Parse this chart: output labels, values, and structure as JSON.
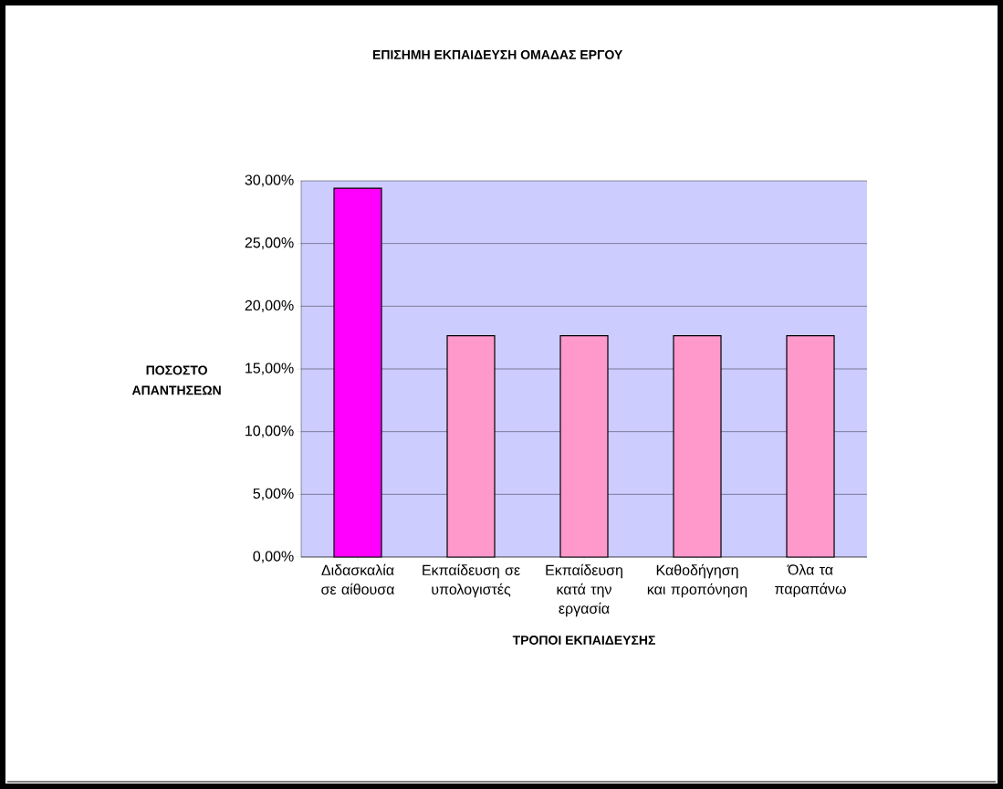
{
  "chart_data": {
    "type": "bar",
    "title": "ΕΠΙΣΗΜΗ ΕΚΠΑΙΔΕΥΣΗ ΟΜΑΔΑΣ ΕΡΓΟΥ",
    "xlabel": "ΤΡΟΠΟΙ ΕΚΠΑΙΔΕΥΣΗΣ",
    "ylabel": "ΠΟΣΟΣΤΟ ΑΠΑΝΤΗΣΕΩΝ",
    "categories": [
      "Διδασκαλία σε αίθουσα",
      "Εκπαίδευση σε υπολογιστές",
      "Εκπαίδευση κατά την εργασία",
      "Καθοδήγηση και προπόνηση",
      "Όλα τα παραπάνω"
    ],
    "values": [
      29.41,
      17.65,
      17.65,
      17.65,
      17.65
    ],
    "colors": [
      "#ff00ff",
      "#ff99cc",
      "#ff99cc",
      "#ff99cc",
      "#ff99cc"
    ],
    "ylim": [
      0,
      30
    ],
    "yticks": [
      {
        "value": 0,
        "label": "0,00%"
      },
      {
        "value": 5,
        "label": "5,00%"
      },
      {
        "value": 10,
        "label": "10,00%"
      },
      {
        "value": 15,
        "label": "15,00%"
      },
      {
        "value": 20,
        "label": "20,00%"
      },
      {
        "value": 25,
        "label": "25,00%"
      },
      {
        "value": 30,
        "label": "30,00%"
      }
    ],
    "grid": "y"
  }
}
